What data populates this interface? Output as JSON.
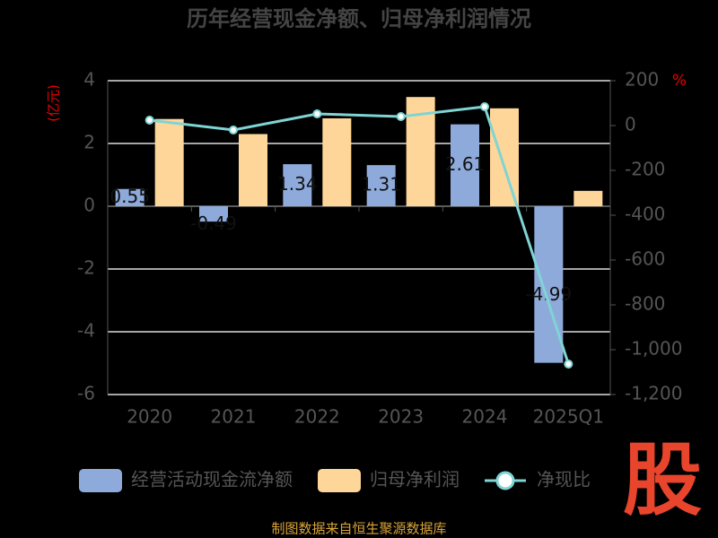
{
  "chart_data": {
    "type": "bar-line",
    "title": "历年经营现金净额、归母净利润情况",
    "y_label": "(亿元)",
    "y2_label": "%",
    "categories": [
      "2020",
      "2021",
      "2022",
      "2023",
      "2024",
      "2025Q1"
    ],
    "ylim": [
      -6,
      4
    ],
    "yticks": [
      -6,
      -4,
      -2,
      0,
      2,
      4
    ],
    "y2lim": [
      -1200,
      200
    ],
    "y2ticks": [
      {
        "value": -1200,
        "label": "-1,200"
      },
      {
        "value": -1000,
        "label": "-1,000"
      },
      -800,
      -600,
      -400,
      -200,
      0,
      200
    ],
    "grid": true,
    "series": [
      {
        "name": "经营活动现金流净额",
        "type": "bar",
        "color": "#8eaadb",
        "values": [
          0.55,
          -0.49,
          1.34,
          1.31,
          2.61,
          -4.99
        ],
        "show_labels": true
      },
      {
        "name": "归母净利润",
        "type": "bar",
        "color": "#ffd699",
        "values": [
          2.78,
          2.3,
          2.8,
          3.48,
          3.12,
          0.49
        ]
      },
      {
        "name": "净现比",
        "type": "line",
        "axis": "y2",
        "color": "#7fd4d4",
        "values": [
          24,
          -20,
          52,
          40,
          84,
          -1064
        ]
      }
    ]
  },
  "footer": "制图数据来自恒生聚源数据库",
  "logo": "股"
}
